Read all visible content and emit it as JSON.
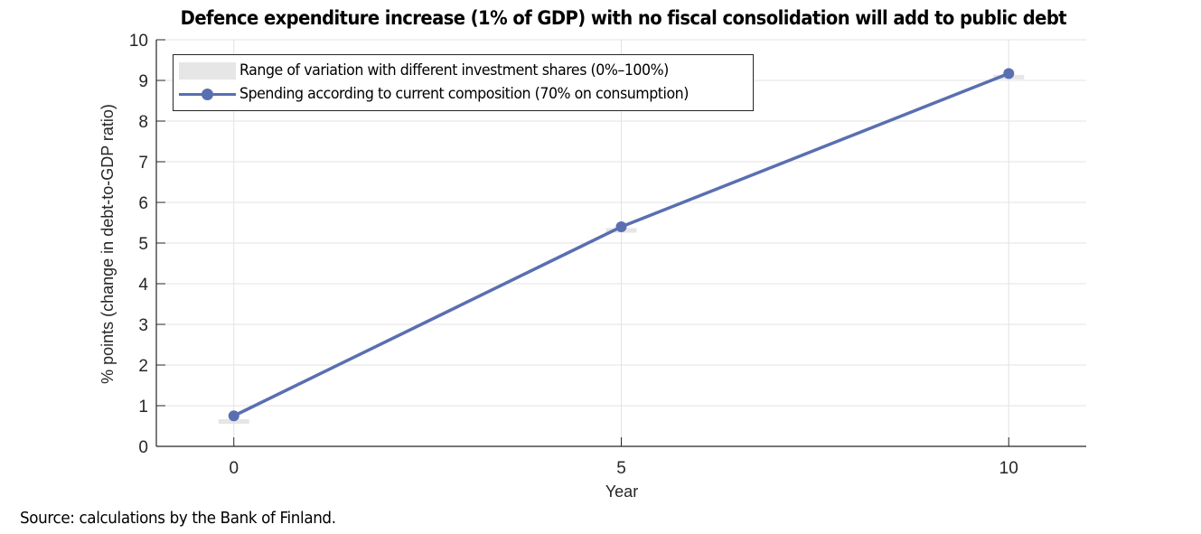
{
  "chart_data": {
    "type": "line",
    "title": "Defence expenditure increase (1% of GDP) with no fiscal consolidation will add to public debt",
    "xlabel": "Year",
    "ylabel": "% points (change in debt-to-GDP ratio)",
    "xlim": [
      -1,
      11
    ],
    "ylim": [
      0,
      10
    ],
    "x_ticks": [
      0,
      5,
      10
    ],
    "y_ticks": [
      0,
      1,
      2,
      3,
      4,
      5,
      6,
      7,
      8,
      9,
      10
    ],
    "grid": true,
    "legend_position": "top-left",
    "x": [
      0,
      5,
      10
    ],
    "series": [
      {
        "name": "Range of variation with different investment shares (0%–100%)",
        "kind": "range",
        "color": "#e6e6e6",
        "lower": [
          0.68,
          5.38,
          9.14
        ],
        "upper": [
          0.72,
          5.42,
          9.2
        ]
      },
      {
        "name": "Spending according to current composition (70% on consumption)",
        "kind": "line",
        "color": "#5a6fb1",
        "values": [
          0.75,
          5.4,
          9.17
        ]
      }
    ]
  },
  "footer": {
    "source": "Source: calculations by the Bank of Finland."
  }
}
